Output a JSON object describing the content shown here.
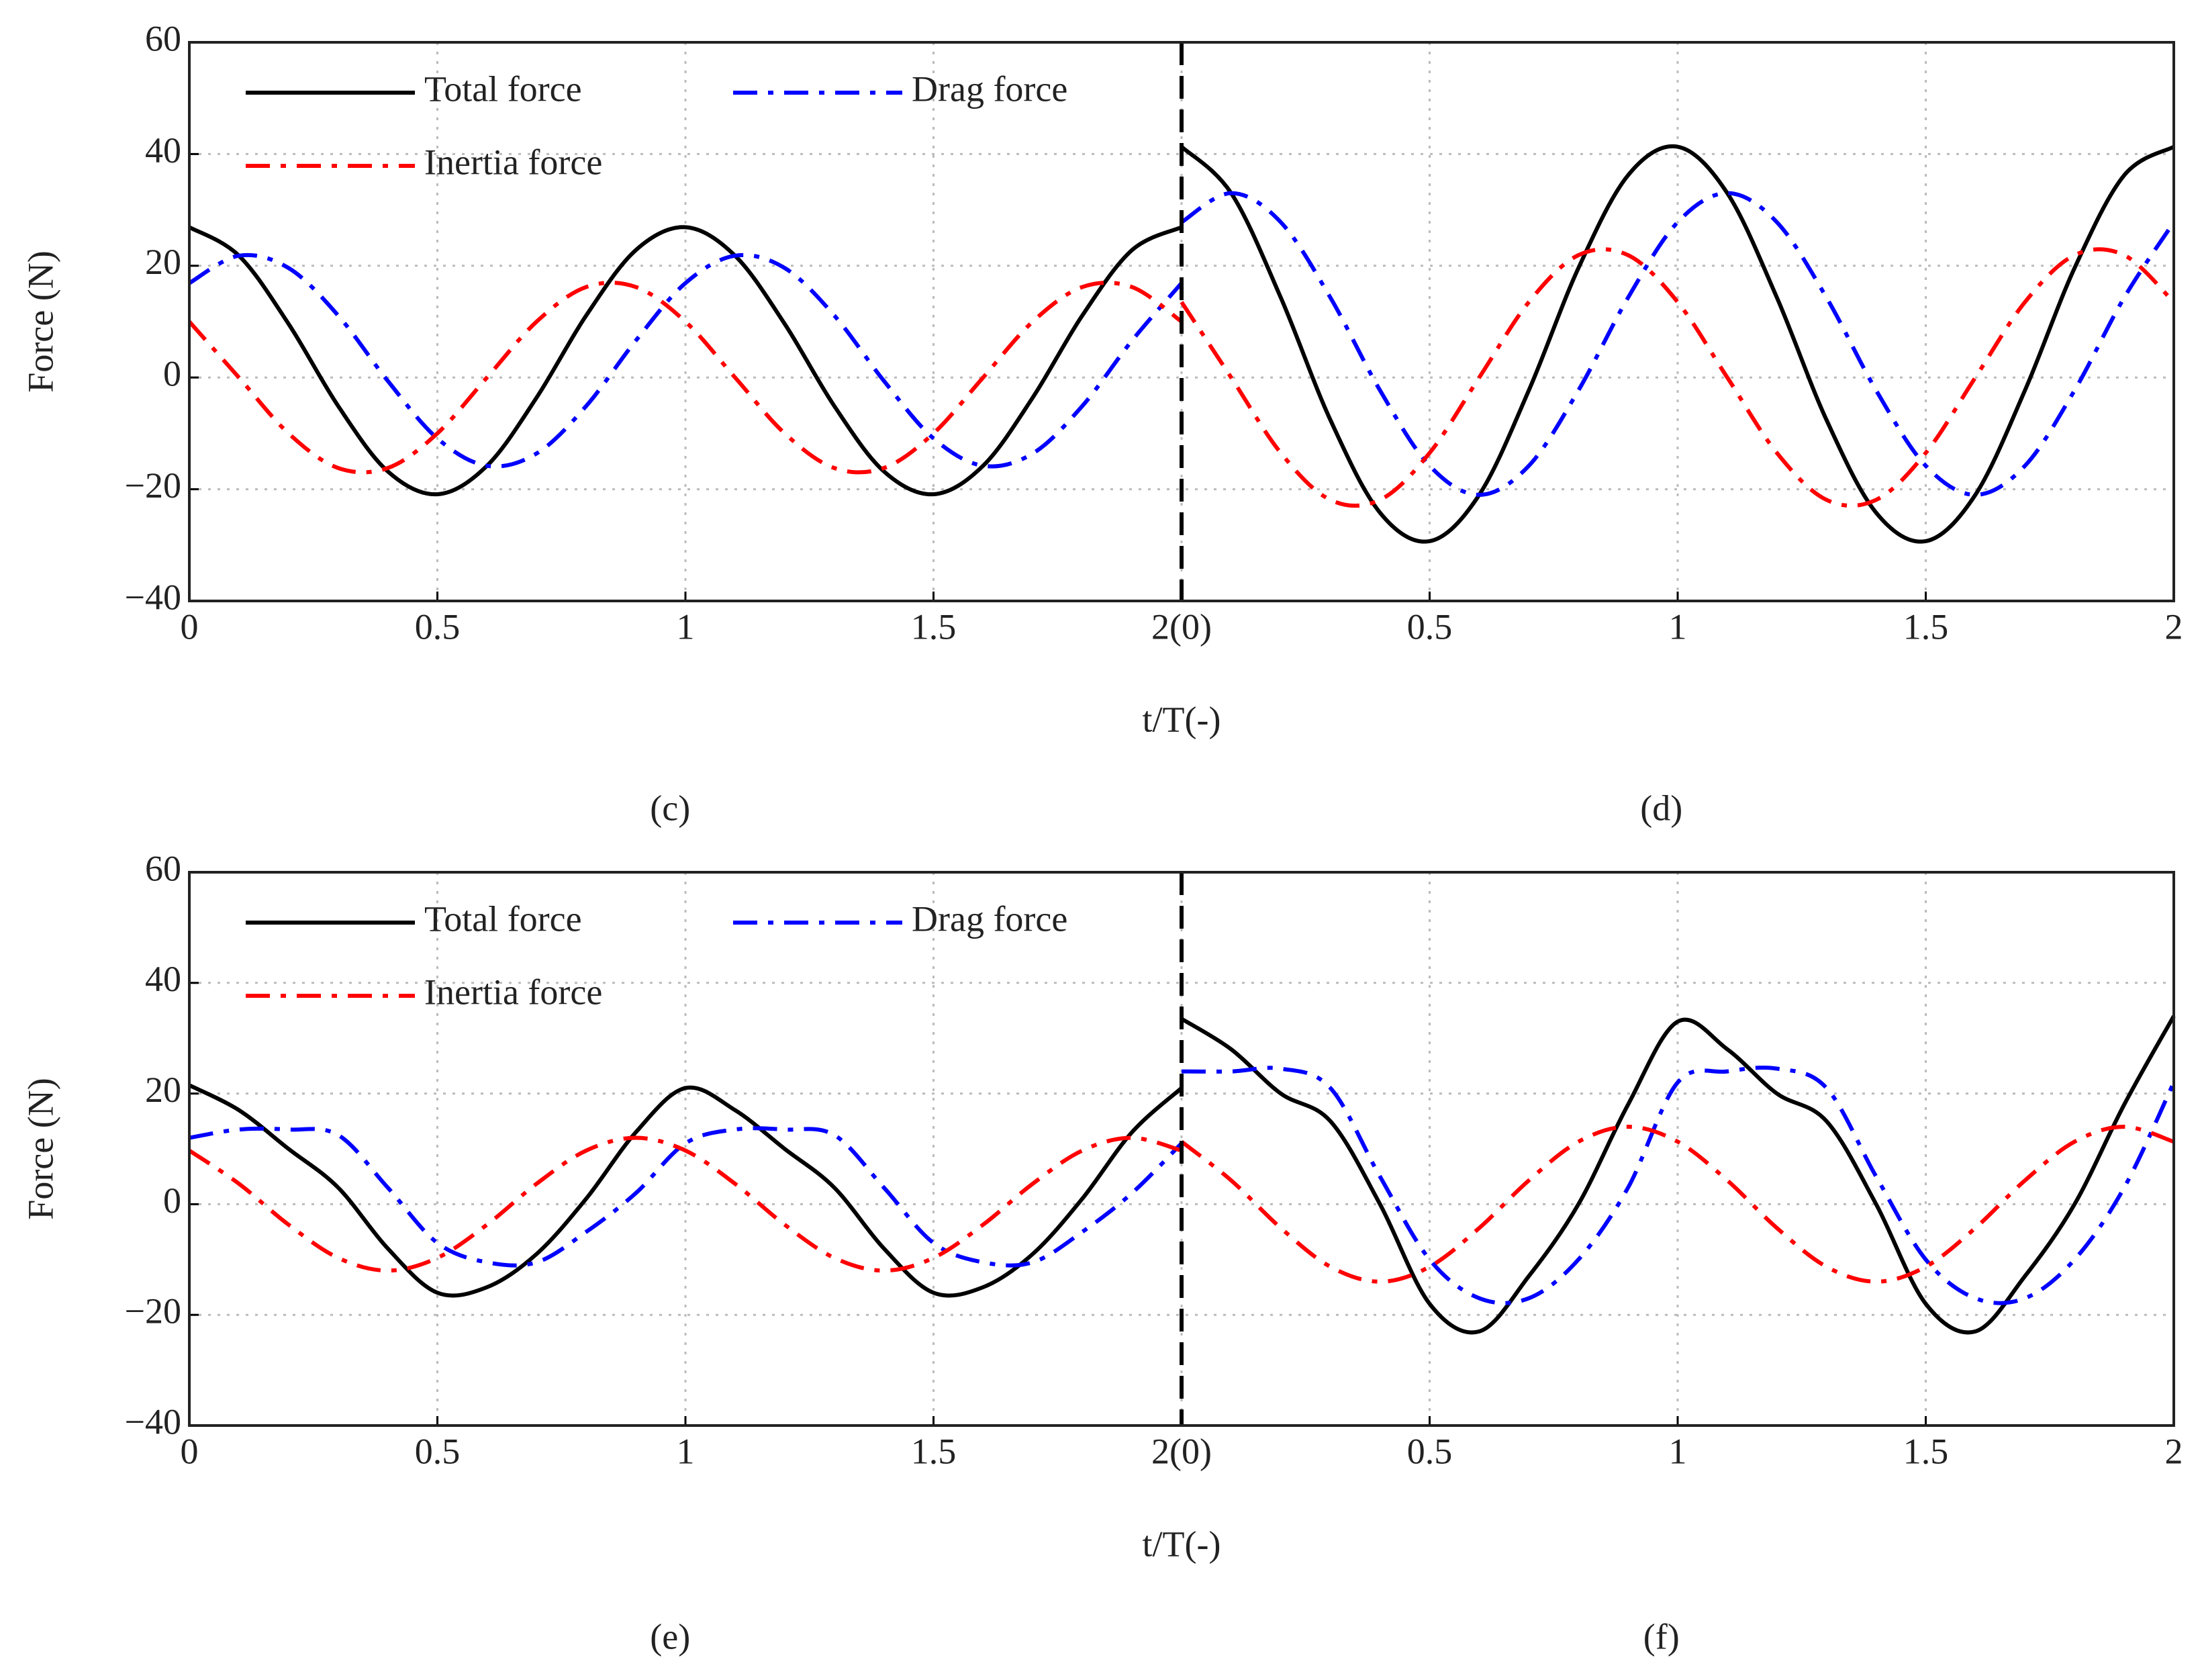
{
  "chart_data": [
    {
      "type": "line",
      "xlabel": "t/T(-)",
      "ylabel": "Force (N)",
      "panel_labels": [
        "(c)",
        "(d)"
      ],
      "xlim": [
        0,
        4
      ],
      "xticks": [
        0,
        0.5,
        1,
        1.5,
        {
          "value": 2,
          "label": "2(0)"
        },
        {
          "value": 2.5,
          "label": "0.5"
        },
        {
          "value": 3,
          "label": "1"
        },
        {
          "value": 3.5,
          "label": "1.5"
        },
        {
          "value": 4,
          "label": "2"
        }
      ],
      "ylim": [
        -40,
        60
      ],
      "yticks": [
        {
          "value": -40,
          "label": "−40"
        },
        {
          "value": -20,
          "label": "−20"
        },
        0,
        20,
        40,
        60
      ],
      "grid": true,
      "vline": 2,
      "x": [
        0,
        0.1,
        0.2,
        0.3,
        0.4,
        0.5,
        0.6,
        0.7,
        0.8,
        0.9,
        1,
        1.1,
        1.2,
        1.3,
        1.4,
        1.5,
        1.6,
        1.7,
        1.8,
        1.9,
        2,
        2,
        2.1,
        2.2,
        2.3,
        2.4,
        2.5,
        2.6,
        2.7,
        2.8,
        2.9,
        3,
        3.1,
        3.2,
        3.3,
        3.4,
        3.5,
        3.6,
        3.7,
        3.8,
        3.9,
        4
      ],
      "series": [
        {
          "name": "Total force",
          "color": "#000000",
          "style": "solid",
          "values": [
            26.9,
            21.8,
            9.6,
            -5.1,
            -16.8,
            -20.9,
            -15.8,
            -3.6,
            11.1,
            22.8,
            26.9,
            21.8,
            9.6,
            -5.1,
            -16.8,
            -20.9,
            -15.8,
            -3.6,
            11.1,
            22.8,
            26.9,
            41.3,
            33,
            14.3,
            -7.6,
            -24.2,
            -29.3,
            -21,
            -2.3,
            19.6,
            36.2,
            41.3,
            33,
            14.3,
            -7.6,
            -24.2,
            -29.3,
            -21,
            -2.3,
            19.6,
            36.2,
            41.3
          ]
        },
        {
          "name": "Drag force",
          "color": "#0000ff",
          "style": "dash-dot",
          "values": [
            16.9,
            21.8,
            19.6,
            11.1,
            -0.6,
            -10.9,
            -15.8,
            -13.6,
            -5.1,
            6.6,
            16.9,
            21.8,
            19.6,
            11.1,
            -0.6,
            -10.9,
            -15.8,
            -13.6,
            -5.1,
            6.6,
            16.9,
            27.8,
            33,
            27.8,
            14.3,
            -2.3,
            -15.8,
            -21,
            -15.8,
            -2.3,
            14.3,
            27.8,
            33,
            27.8,
            14.3,
            -2.3,
            -15.8,
            -21,
            -15.8,
            -2.3,
            14.3,
            27.8
          ]
        },
        {
          "name": "Inertia force",
          "color": "#ff0000",
          "style": "dash-dot",
          "values": [
            10,
            0,
            -10,
            -16.2,
            -16.2,
            -10,
            0,
            10,
            16.2,
            16.2,
            10,
            0,
            -10,
            -16.2,
            -16.2,
            -10,
            0,
            10,
            16.2,
            16.2,
            10,
            13.5,
            0,
            -13.5,
            -21.9,
            -21.9,
            -13.5,
            0,
            13.5,
            21.9,
            21.9,
            13.5,
            0,
            -13.5,
            -21.9,
            -21.9,
            -13.5,
            0,
            13.5,
            21.9,
            21.9,
            13.5
          ]
        }
      ]
    },
    {
      "type": "line",
      "xlabel": "t/T(-)",
      "ylabel": "Force (N)",
      "panel_labels": [
        "(e)",
        "(f)"
      ],
      "xlim": [
        0,
        4
      ],
      "xticks": [
        0,
        0.5,
        1,
        1.5,
        {
          "value": 2,
          "label": "2(0)"
        },
        {
          "value": 2.5,
          "label": "0.5"
        },
        {
          "value": 3,
          "label": "1"
        },
        {
          "value": 3.5,
          "label": "1.5"
        },
        {
          "value": 4,
          "label": "2"
        }
      ],
      "ylim": [
        -40,
        60
      ],
      "yticks": [
        {
          "value": -40,
          "label": "−40"
        },
        {
          "value": -20,
          "label": "−20"
        },
        0,
        20,
        40,
        60
      ],
      "grid": true,
      "vline": 2,
      "x": [
        0,
        0.1,
        0.2,
        0.3,
        0.4,
        0.5,
        0.6,
        0.7,
        0.8,
        0.9,
        1,
        1.1,
        1.2,
        1.3,
        1.4,
        1.5,
        1.6,
        1.7,
        1.8,
        1.9,
        2,
        2,
        2.1,
        2.2,
        2.3,
        2.4,
        2.5,
        2.6,
        2.7,
        2.8,
        2.9,
        3,
        3.1,
        3.2,
        3.3,
        3.4,
        3.5,
        3.6,
        3.7,
        3.8,
        3.9,
        4
      ],
      "series": [
        {
          "name": "Total force",
          "color": "#000000",
          "style": "solid",
          "values": [
            21.5,
            17,
            10,
            3,
            -8,
            -16,
            -15,
            -9,
            1,
            13,
            21,
            17,
            10,
            3,
            -8,
            -16,
            -15,
            -9,
            1,
            13,
            21,
            33.5,
            28,
            20,
            15,
            0,
            -18,
            -23,
            -13,
            0,
            18,
            33,
            28,
            20,
            15,
            0,
            -18,
            -23,
            -13,
            0,
            18,
            34
          ]
        },
        {
          "name": "Drag force",
          "color": "#0000ff",
          "style": "dash-dot",
          "values": [
            12,
            13.5,
            13.5,
            12.5,
            3,
            -7,
            -10.5,
            -10.5,
            -5,
            2,
            11,
            13.5,
            13.5,
            12.5,
            3,
            -7,
            -10.5,
            -10.5,
            -5,
            2,
            11,
            24,
            24,
            24.5,
            21,
            5,
            -10,
            -17,
            -17,
            -10,
            3,
            22,
            24,
            24.5,
            21,
            5,
            -10,
            -17,
            -17,
            -10,
            3,
            22
          ]
        },
        {
          "name": "Inertia force",
          "color": "#ff0000",
          "style": "dash-dot",
          "values": [
            9.7,
            3.7,
            -3.7,
            -9.7,
            -12,
            -9.7,
            -3.7,
            3.7,
            9.7,
            12,
            9.7,
            3.7,
            -3.7,
            -9.7,
            -12,
            -9.7,
            -3.7,
            3.7,
            9.7,
            12,
            9.7,
            11.3,
            4.3,
            -4.3,
            -11.3,
            -14,
            -11.3,
            -4.3,
            4.3,
            11.3,
            14,
            11.3,
            4.3,
            -4.3,
            -11.3,
            -14,
            -11.3,
            -4.3,
            4.3,
            11.3,
            14,
            11.3
          ]
        }
      ]
    }
  ]
}
